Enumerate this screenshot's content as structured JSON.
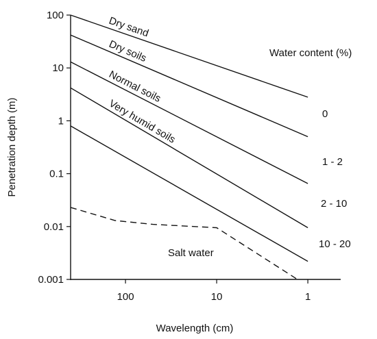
{
  "chart_data": {
    "type": "line",
    "title": "",
    "xlabel": "Wavelength (cm)",
    "ylabel": "Penetration depth (m)",
    "x_scale": "log-reversed",
    "y_scale": "log",
    "xlim": [
      400,
      0.8
    ],
    "ylim": [
      0.001,
      100
    ],
    "grid": false,
    "x_ticks": [
      {
        "value": 100,
        "label": "100"
      },
      {
        "value": 10,
        "label": "10"
      },
      {
        "value": 1,
        "label": "1"
      }
    ],
    "y_ticks": [
      {
        "value": 100,
        "label": "100"
      },
      {
        "value": 10,
        "label": "10"
      },
      {
        "value": 1,
        "label": "1"
      },
      {
        "value": 0.1,
        "label": "0.1"
      },
      {
        "value": 0.01,
        "label": "0.01"
      },
      {
        "value": 0.001,
        "label": "0.001"
      }
    ],
    "legend_title": "Water content (%)",
    "series": [
      {
        "name": "Dry sand",
        "water_content": "0",
        "style": "solid",
        "points": [
          [
            400,
            100
          ],
          [
            1,
            2.8
          ]
        ]
      },
      {
        "name": "Dry soils",
        "water_content": "1 - 2",
        "style": "solid",
        "points": [
          [
            400,
            42
          ],
          [
            1,
            0.5
          ]
        ]
      },
      {
        "name": "Normal soils",
        "water_content": "2 - 10",
        "style": "solid",
        "points": [
          [
            400,
            13
          ],
          [
            1,
            0.065
          ]
        ]
      },
      {
        "name": "Very humid soils",
        "water_content": "10 - 20",
        "style": "solid",
        "points": [
          [
            400,
            4.2
          ],
          [
            1,
            0.0095
          ]
        ]
      },
      {
        "name": "",
        "water_content": "",
        "style": "solid",
        "points": [
          [
            400,
            0.8
          ],
          [
            1,
            0.0022
          ]
        ]
      },
      {
        "name": "Salt water",
        "water_content": "",
        "style": "dashed",
        "points": [
          [
            400,
            0.023
          ],
          [
            130,
            0.013
          ],
          [
            50,
            0.011
          ],
          [
            10,
            0.0095
          ],
          [
            1.3,
            0.001
          ]
        ]
      }
    ]
  }
}
